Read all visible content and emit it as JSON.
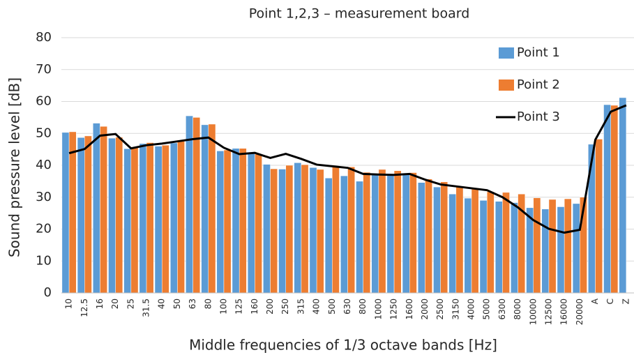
{
  "chart_data": {
    "type": "bar_line",
    "title": "Point 1,2,3 – measurement board",
    "x_label": "Middle frequencies of 1/3 octave bands [Hz]",
    "y_label": "Sound pressure level [dB]",
    "categories": [
      "10",
      "12.5",
      "16",
      "20",
      "25",
      "31.5",
      "40",
      "50",
      "63",
      "80",
      "100",
      "125",
      "160",
      "200",
      "250",
      "315",
      "400",
      "500",
      "630",
      "800",
      "1000",
      "1250",
      "1600",
      "2000",
      "2500",
      "3150",
      "4000",
      "5000",
      "6300",
      "8000",
      "10000",
      "12500",
      "16000",
      "20000",
      "A",
      "C",
      "Z"
    ],
    "series": [
      {
        "name": "Point 1",
        "type": "bar",
        "color": "#5b9bd5",
        "values": [
          50.3,
          48.7,
          53.2,
          48.5,
          45.2,
          46.8,
          46,
          47,
          55.5,
          52.7,
          44.5,
          45.3,
          43.7,
          40.3,
          38.8,
          40.8,
          39.3,
          36,
          36.7,
          35,
          37.3,
          37,
          37.3,
          34.6,
          33.2,
          31,
          29.7,
          29,
          28.7,
          28.3,
          26.7,
          26.3,
          27,
          28,
          46.6,
          59,
          61.2
        ]
      },
      {
        "name": "Point 2",
        "type": "bar",
        "color": "#ed7d31",
        "values": [
          50.5,
          49.2,
          52.2,
          48.8,
          45.5,
          47.1,
          46.3,
          47.5,
          55,
          52.9,
          44.8,
          45.3,
          43.5,
          38.9,
          40,
          40.2,
          38.7,
          39.5,
          39.5,
          37.8,
          38.7,
          38.3,
          37.7,
          35.7,
          34.8,
          33.5,
          32.5,
          31.7,
          31.5,
          31,
          29.8,
          29.3,
          29.5,
          30,
          48.2,
          58.8,
          null
        ]
      },
      {
        "name": "Point 3",
        "type": "line",
        "color": "#000000",
        "values": [
          43.8,
          45.1,
          49.3,
          49.8,
          45.3,
          46.3,
          46.8,
          47.5,
          48.2,
          48.7,
          45.5,
          43.5,
          43.9,
          42.3,
          43.6,
          42,
          40.2,
          39.7,
          39.2,
          37.3,
          37.1,
          37,
          37.3,
          35.5,
          34,
          33.4,
          32.8,
          32.2,
          30,
          26.8,
          22.8,
          20.1,
          18.9,
          19.8,
          48,
          56.8,
          58.8
        ]
      }
    ],
    "ylim": [
      0,
      80
    ],
    "yticks": [
      0,
      10,
      20,
      30,
      40,
      50,
      60,
      70,
      80
    ],
    "grid": true,
    "legend": "top-right"
  }
}
